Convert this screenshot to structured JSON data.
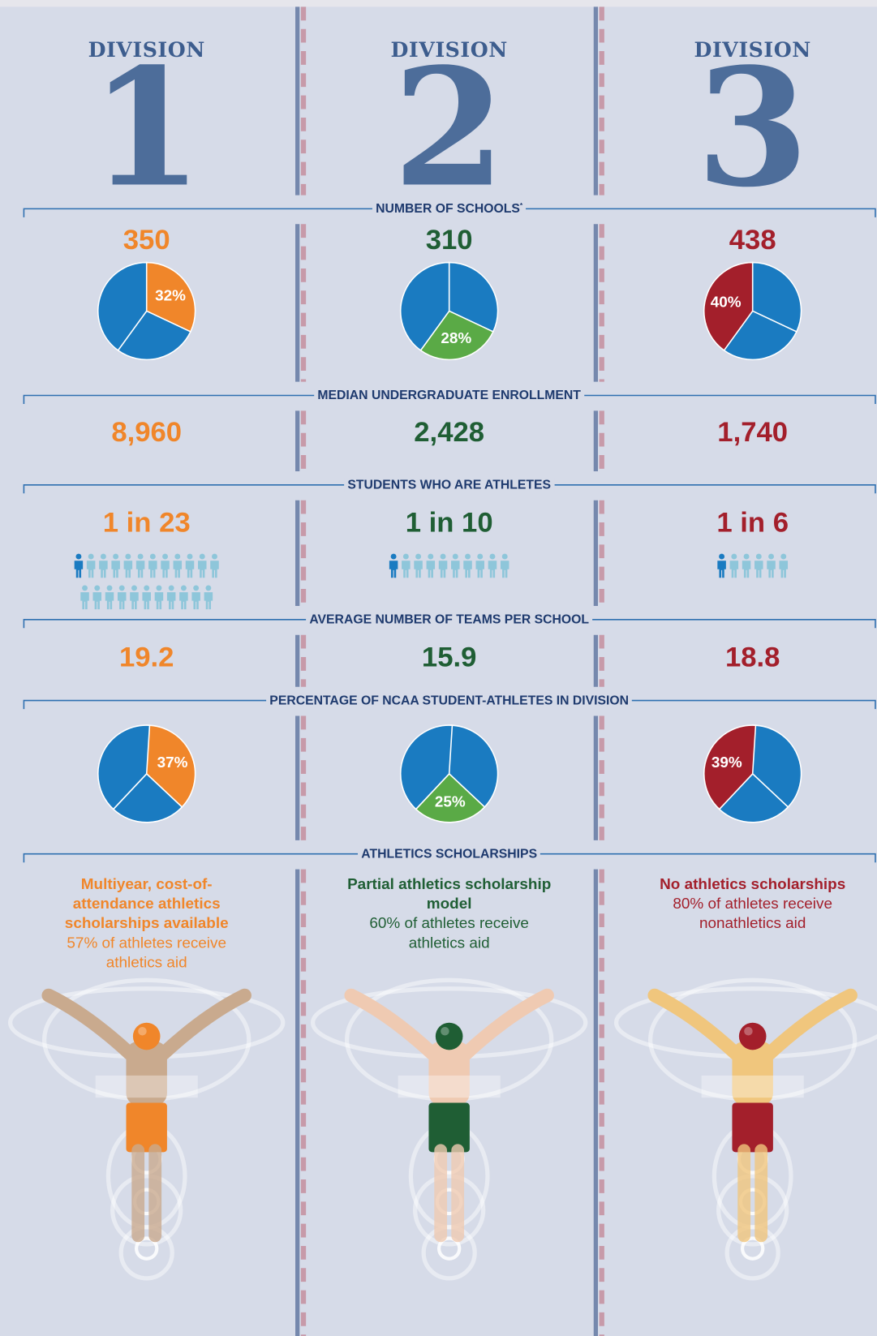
{
  "divisions": [
    {
      "label": "DIVISION",
      "number": 1,
      "color": "#f0862a",
      "pie_color": "#f0862a",
      "schools": 350,
      "schools_share": {
        "value": 32,
        "label": "32%"
      },
      "enrollment": "8,960",
      "athletes": {
        "value": 23,
        "label": "1 in 23"
      },
      "teams": 19.2,
      "athlete_share": {
        "value": 37,
        "label": "37%"
      },
      "scholarship_model": "Multiyear, cost-of-attendance athletics scholarships available",
      "scholarship_aid": "57% of athletes receive athletics aid"
    },
    {
      "label": "DIVISION",
      "number": 2,
      "color": "#1f5e34",
      "pie_color": "#5aaa46",
      "schools": 310,
      "schools_share": {
        "value": 28,
        "label": "28%"
      },
      "enrollment": "2,428",
      "athletes": {
        "value": 10,
        "label": "1 in 10"
      },
      "teams": 15.9,
      "athlete_share": {
        "value": 25,
        "label": "25%"
      },
      "scholarship_model": "Partial athletics scholarship model",
      "scholarship_aid": "60% of athletes receive athletics aid"
    },
    {
      "label": "DIVISION",
      "number": 3,
      "color": "#a31f2b",
      "pie_color": "#a31f2b",
      "schools": 438,
      "schools_share": {
        "value": 40,
        "label": "40%"
      },
      "enrollment": "1,740",
      "athletes": {
        "value": 6,
        "label": "1 in 6"
      },
      "teams": 18.8,
      "athlete_share": {
        "value": 39,
        "label": "39%"
      },
      "scholarship_model": "No athletics scholarships",
      "scholarship_aid": "80% of athletes receive nonathletics aid"
    }
  ],
  "sections": [
    {
      "title": "NUMBER OF SCHOOLS",
      "note": "*"
    },
    {
      "title": "MEDIAN UNDERGRADUATE ENROLLMENT"
    },
    {
      "title": "STUDENTS WHO ARE ATHLETES"
    },
    {
      "title": "AVERAGE NUMBER OF TEAMS PER SCHOOL"
    },
    {
      "title": "PERCENTAGE OF NCAA STUDENT-ATHLETES IN DIVISION"
    },
    {
      "title": "ATHLETICS SCHOLARSHIPS"
    }
  ]
}
